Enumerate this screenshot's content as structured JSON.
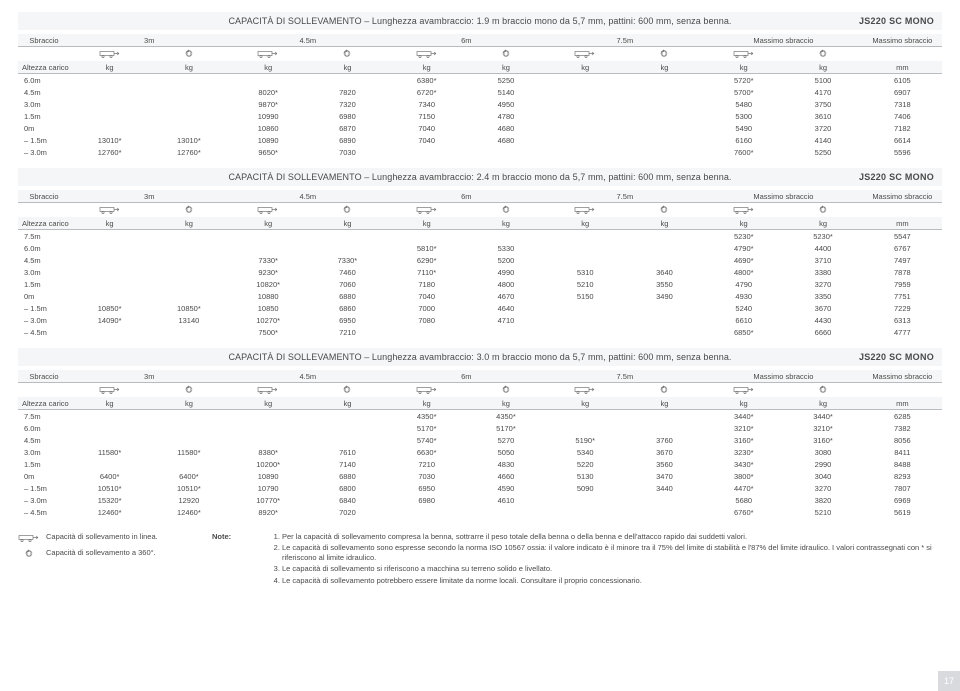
{
  "model_label": "JS220 SC MONO",
  "col_headers": {
    "sbraccio": "Sbraccio",
    "d3": "3m",
    "d45": "4.5m",
    "d6": "6m",
    "d75": "7.5m",
    "max1": "Massimo sbraccio",
    "max2": "Massimo sbraccio",
    "altezza": "Altezza carico",
    "kg": "kg",
    "mm": "mm"
  },
  "sections": [
    {
      "title": "CAPACITÀ DI SOLLEVAMENTO – Lunghezza avambraccio: 1.9 m braccio mono da 5,7 mm, pattini: 600 mm, senza benna.",
      "rows": [
        {
          "h": "6.0m",
          "v": [
            "",
            "",
            "",
            "",
            "6380*",
            "5250",
            "",
            "",
            "5720*",
            "5100",
            "6105"
          ]
        },
        {
          "h": "4.5m",
          "v": [
            "",
            "",
            "8020*",
            "7820",
            "6720*",
            "5140",
            "",
            "",
            "5700*",
            "4170",
            "6907"
          ]
        },
        {
          "h": "3.0m",
          "v": [
            "",
            "",
            "9870*",
            "7320",
            "7340",
            "4950",
            "",
            "",
            "5480",
            "3750",
            "7318"
          ]
        },
        {
          "h": "1.5m",
          "v": [
            "",
            "",
            "10990",
            "6980",
            "7150",
            "4780",
            "",
            "",
            "5300",
            "3610",
            "7406"
          ]
        },
        {
          "h": "0m",
          "v": [
            "",
            "",
            "10860",
            "6870",
            "7040",
            "4680",
            "",
            "",
            "5490",
            "3720",
            "7182"
          ]
        },
        {
          "h": "– 1.5m",
          "v": [
            "13010*",
            "13010*",
            "10890",
            "6890",
            "7040",
            "4680",
            "",
            "",
            "6160",
            "4140",
            "6614"
          ]
        },
        {
          "h": "– 3.0m",
          "v": [
            "12760*",
            "12760*",
            "9650*",
            "7030",
            "",
            "",
            "",
            "",
            "7600*",
            "5250",
            "5596"
          ]
        }
      ]
    },
    {
      "title": "CAPACITÀ DI SOLLEVAMENTO – Lunghezza avambraccio: 2.4 m braccio mono da 5,7 mm, pattini: 600 mm, senza benna.",
      "rows": [
        {
          "h": "7.5m",
          "v": [
            "",
            "",
            "",
            "",
            "",
            "",
            "",
            "",
            "5230*",
            "5230*",
            "5547"
          ]
        },
        {
          "h": "6.0m",
          "v": [
            "",
            "",
            "",
            "",
            "5810*",
            "5330",
            "",
            "",
            "4790*",
            "4400",
            "6767"
          ]
        },
        {
          "h": "4.5m",
          "v": [
            "",
            "",
            "7330*",
            "7330*",
            "6290*",
            "5200",
            "",
            "",
            "4690*",
            "3710",
            "7497"
          ]
        },
        {
          "h": "3.0m",
          "v": [
            "",
            "",
            "9230*",
            "7460",
            "7110*",
            "4990",
            "5310",
            "3640",
            "4800*",
            "3380",
            "7878"
          ]
        },
        {
          "h": "1.5m",
          "v": [
            "",
            "",
            "10820*",
            "7060",
            "7180",
            "4800",
            "5210",
            "3550",
            "4790",
            "3270",
            "7959"
          ]
        },
        {
          "h": "0m",
          "v": [
            "",
            "",
            "10880",
            "6880",
            "7040",
            "4670",
            "5150",
            "3490",
            "4930",
            "3350",
            "7751"
          ]
        },
        {
          "h": "– 1.5m",
          "v": [
            "10850*",
            "10850*",
            "10850",
            "6860",
            "7000",
            "4640",
            "",
            "",
            "5240",
            "3670",
            "7229"
          ]
        },
        {
          "h": "– 3.0m",
          "v": [
            "14090*",
            "13140",
            "10270*",
            "6950",
            "7080",
            "4710",
            "",
            "",
            "6610",
            "4430",
            "6313"
          ]
        },
        {
          "h": "– 4.5m",
          "v": [
            "",
            "",
            "7500*",
            "7210",
            "",
            "",
            "",
            "",
            "6850*",
            "6660",
            "4777"
          ]
        }
      ]
    },
    {
      "title": "CAPACITÀ DI SOLLEVAMENTO – Lunghezza avambraccio: 3.0 m braccio mono da 5,7 mm, pattini: 600 mm, senza benna.",
      "rows": [
        {
          "h": "7.5m",
          "v": [
            "",
            "",
            "",
            "",
            "4350*",
            "4350*",
            "",
            "",
            "3440*",
            "3440*",
            "6285"
          ]
        },
        {
          "h": "6.0m",
          "v": [
            "",
            "",
            "",
            "",
            "5170*",
            "5170*",
            "",
            "",
            "3210*",
            "3210*",
            "7382"
          ]
        },
        {
          "h": "4.5m",
          "v": [
            "",
            "",
            "",
            "",
            "5740*",
            "5270",
            "5190*",
            "3760",
            "3160*",
            "3160*",
            "8056"
          ]
        },
        {
          "h": "3.0m",
          "v": [
            "11580*",
            "11580*",
            "8380*",
            "7610",
            "6630*",
            "5050",
            "5340",
            "3670",
            "3230*",
            "3080",
            "8411"
          ]
        },
        {
          "h": "1.5m",
          "v": [
            "",
            "",
            "10200*",
            "7140",
            "7210",
            "4830",
            "5220",
            "3560",
            "3430*",
            "2990",
            "8488"
          ]
        },
        {
          "h": "0m",
          "v": [
            "6400*",
            "6400*",
            "10890",
            "6880",
            "7030",
            "4660",
            "5130",
            "3470",
            "3800*",
            "3040",
            "8293"
          ]
        },
        {
          "h": "– 1.5m",
          "v": [
            "10510*",
            "10510*",
            "10790",
            "6800",
            "6950",
            "4590",
            "5090",
            "3440",
            "4470*",
            "3270",
            "7807"
          ]
        },
        {
          "h": "– 3.0m",
          "v": [
            "15320*",
            "12920",
            "10770*",
            "6840",
            "6980",
            "4610",
            "",
            "",
            "5680",
            "3820",
            "6969"
          ]
        },
        {
          "h": "– 4.5m",
          "v": [
            "12460*",
            "12460*",
            "8920*",
            "7020",
            "",
            "",
            "",
            "",
            "6760*",
            "5210",
            "5619"
          ]
        }
      ]
    }
  ],
  "icons": {
    "side": "side",
    "full": "full"
  },
  "legend": {
    "side": "Capacità di sollevamento in linea.",
    "full": "Capacità di sollevamento a 360°."
  },
  "note_label": "Note:",
  "notes": [
    "Per la capacità di sollevamento compresa la benna, sottrarre il peso totale della benna o della benna e dell'attacco rapido dai suddetti valori.",
    "Le capacità di sollevamento sono espresse secondo la norma ISO 10567 ossia: il valore indicato è il minore tra il 75% del limite di stabilità e l'87% del limite idraulico. I valori contrassegnati con * si riferiscono al limite idraulico.",
    "Le capacità di sollevamento si riferiscono a macchina su terreno solido e livellato.",
    "Le capacità di sollevamento potrebbero essere limitate da norme locali. Consultare il proprio concessionario."
  ],
  "page": "17"
}
